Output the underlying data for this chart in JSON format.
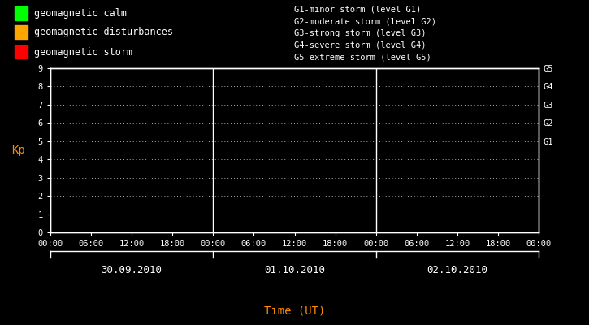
{
  "background_color": "#000000",
  "plot_bg_color": "#000000",
  "axis_color": "#ffffff",
  "tick_color": "#ffffff",
  "ylabel": "Kp",
  "ylabel_color": "#ff8c00",
  "xlabel": "Time (UT)",
  "xlabel_color": "#ff8c00",
  "ylim": [
    0,
    9
  ],
  "yticks": [
    0,
    1,
    2,
    3,
    4,
    5,
    6,
    7,
    8,
    9
  ],
  "grid_color": "#ffffff",
  "legend_items": [
    {
      "label": "geomagnetic calm",
      "color": "#00ff00"
    },
    {
      "label": "geomagnetic disturbances",
      "color": "#ffa500"
    },
    {
      "label": "geomagnetic storm",
      "color": "#ff0000"
    }
  ],
  "right_labels": [
    {
      "y": 5,
      "text": "G1"
    },
    {
      "y": 6,
      "text": "G2"
    },
    {
      "y": 7,
      "text": "G3"
    },
    {
      "y": 8,
      "text": "G4"
    },
    {
      "y": 9,
      "text": "G5"
    }
  ],
  "storm_labels": [
    "G1-minor storm (level G1)",
    "G2-moderate storm (level G2)",
    "G3-strong storm (level G3)",
    "G4-severe storm (level G4)",
    "G5-extreme storm (level G5)"
  ],
  "days": [
    "30.09.2010",
    "01.10.2010",
    "02.10.2010"
  ],
  "tick_positions": [
    0,
    6,
    12,
    18,
    24,
    30,
    36,
    42,
    48,
    54,
    60,
    66,
    72
  ],
  "tick_labels": [
    "00:00",
    "06:00",
    "12:00",
    "18:00",
    "00:00",
    "06:00",
    "12:00",
    "18:00",
    "00:00",
    "06:00",
    "12:00",
    "18:00",
    "00:00"
  ],
  "day_dividers": [
    24,
    48
  ],
  "day_centers": [
    12,
    36,
    60
  ],
  "font_family": "monospace",
  "font_size_tick": 7.5,
  "font_size_legend": 8.5,
  "font_size_ylabel": 10,
  "font_size_storm": 7.5,
  "font_size_date": 9,
  "font_size_xlabel": 10
}
